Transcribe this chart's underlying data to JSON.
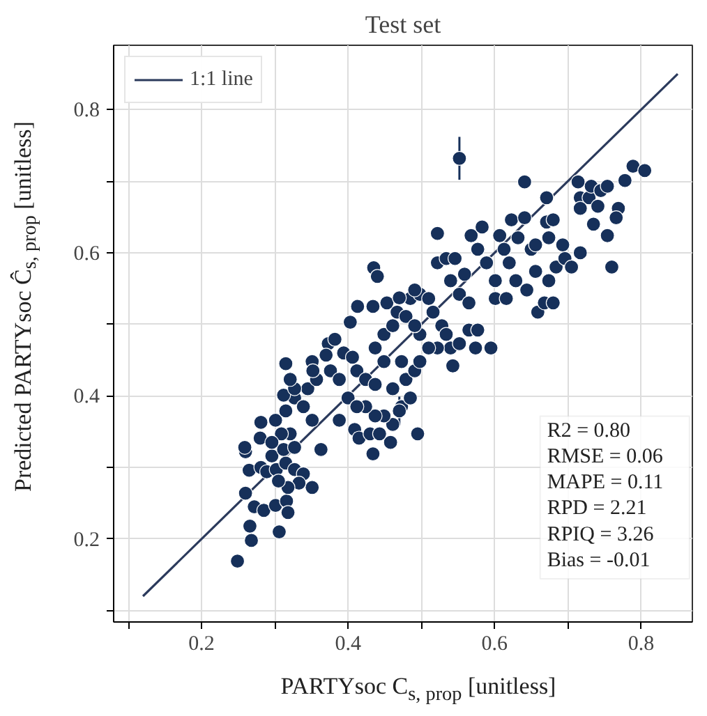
{
  "chart_data": {
    "type": "scatter",
    "title": "Test set",
    "xlabel": "PARTYsoc C$_{s, prop}$ [unitless]",
    "ylabel": "Predicted PARTYsoc Ĉ$_{s, prop}$ [unitless]",
    "xlim": [
      0.08,
      0.87
    ],
    "ylim": [
      0.084,
      0.89
    ],
    "xticks": [
      {
        "value": 0.1,
        "label": null
      },
      0.2,
      {
        "value": 0.3,
        "label": null
      },
      0.4,
      {
        "value": 0.5,
        "label": null
      },
      0.6,
      {
        "value": 0.7,
        "label": null
      },
      0.8
    ],
    "yticks": [
      {
        "value": 0.1,
        "label": null
      },
      0.2,
      {
        "value": 0.3,
        "label": null
      },
      0.4,
      {
        "value": 0.5,
        "label": null
      },
      0.6,
      {
        "value": 0.7,
        "label": null
      },
      0.8
    ],
    "grid": true,
    "legend": "top left",
    "annotations": [
      "R2 = 0.80",
      "RMSE = 0.06",
      "MAPE = 0.11",
      "RPD = 2.21",
      "RPIQ = 3.26",
      "Bias = -0.01"
    ],
    "series": [
      {
        "name": "1:1 line",
        "type": "line",
        "color": "#2b3a5c",
        "x": [
          0.12,
          0.85
        ],
        "values": [
          0.12,
          0.85
        ]
      },
      {
        "color": "#16305a",
        "marker": "circle",
        "x": [
          0.249,
          0.268,
          0.266,
          0.306,
          0.26,
          0.272,
          0.285,
          0.301,
          0.316,
          0.318,
          0.265,
          0.281,
          0.26,
          0.259,
          0.28,
          0.281,
          0.301,
          0.289,
          0.302,
          0.315,
          0.327,
          0.339,
          0.351,
          0.333,
          0.318,
          0.305,
          0.296,
          0.312,
          0.327,
          0.321,
          0.309,
          0.296,
          0.315,
          0.327,
          0.312,
          0.339,
          0.351,
          0.363,
          0.345,
          0.357,
          0.315,
          0.327,
          0.376,
          0.388,
          0.373,
          0.382,
          0.37,
          0.394,
          0.406,
          0.412,
          0.424,
          0.437,
          0.4,
          0.388,
          0.409,
          0.415,
          0.43,
          0.443,
          0.434,
          0.458,
          0.461,
          0.449,
          0.473,
          0.485,
          0.495,
          0.437,
          0.424,
          0.412,
          0.461,
          0.479,
          0.491,
          0.498,
          0.473,
          0.449,
          0.437,
          0.449,
          0.461,
          0.467,
          0.479,
          0.485,
          0.498,
          0.51,
          0.516,
          0.528,
          0.534,
          0.54,
          0.543,
          0.552,
          0.565,
          0.577,
          0.595,
          0.574,
          0.522,
          0.51,
          0.498,
          0.491,
          0.403,
          0.413,
          0.434,
          0.435,
          0.44,
          0.453,
          0.47,
          0.491,
          0.522,
          0.534,
          0.546,
          0.522,
          0.54,
          0.552,
          0.565,
          0.559,
          0.568,
          0.583,
          0.577,
          0.589,
          0.607,
          0.601,
          0.601,
          0.616,
          0.623,
          0.641,
          0.641,
          0.671,
          0.632,
          0.65,
          0.656,
          0.644,
          0.659,
          0.668,
          0.68,
          0.674,
          0.684,
          0.674,
          0.671,
          0.68,
          0.696,
          0.705,
          0.717,
          0.693,
          0.656,
          0.629,
          0.62,
          0.613,
          0.714,
          0.717,
          0.729,
          0.732,
          0.745,
          0.754,
          0.741,
          0.769,
          0.766,
          0.735,
          0.754,
          0.76,
          0.778,
          0.789,
          0.805,
          0.717,
          0.351,
          0.321,
          0.552,
          0.47,
          0.352
        ],
        "values": [
          0.169,
          0.198,
          0.218,
          0.21,
          0.264,
          0.245,
          0.24,
          0.247,
          0.253,
          0.237,
          0.296,
          0.3,
          0.322,
          0.328,
          0.341,
          0.363,
          0.366,
          0.294,
          0.297,
          0.306,
          0.297,
          0.291,
          0.272,
          0.278,
          0.272,
          0.281,
          0.316,
          0.325,
          0.328,
          0.347,
          0.347,
          0.335,
          0.379,
          0.397,
          0.401,
          0.385,
          0.366,
          0.325,
          0.41,
          0.423,
          0.445,
          0.41,
          0.435,
          0.423,
          0.473,
          0.479,
          0.457,
          0.46,
          0.454,
          0.435,
          0.423,
          0.416,
          0.397,
          0.366,
          0.353,
          0.341,
          0.347,
          0.347,
          0.319,
          0.335,
          0.36,
          0.372,
          0.385,
          0.397,
          0.347,
          0.372,
          0.385,
          0.385,
          0.41,
          0.423,
          0.435,
          0.448,
          0.448,
          0.448,
          0.467,
          0.486,
          0.498,
          0.517,
          0.511,
          0.536,
          0.542,
          0.536,
          0.517,
          0.498,
          0.486,
          0.467,
          0.442,
          0.473,
          0.492,
          0.492,
          0.467,
          0.467,
          0.467,
          0.467,
          0.486,
          0.498,
          0.503,
          0.525,
          0.525,
          0.579,
          0.567,
          0.53,
          0.537,
          0.548,
          0.586,
          0.592,
          0.592,
          0.627,
          0.561,
          0.542,
          0.53,
          0.57,
          0.624,
          0.636,
          0.605,
          0.586,
          0.624,
          0.561,
          0.536,
          0.536,
          0.646,
          0.649,
          0.699,
          0.677,
          0.621,
          0.605,
          0.574,
          0.548,
          0.517,
          0.53,
          0.53,
          0.561,
          0.58,
          0.621,
          0.643,
          0.646,
          0.592,
          0.58,
          0.6,
          0.611,
          0.611,
          0.561,
          0.586,
          0.605,
          0.699,
          0.677,
          0.677,
          0.693,
          0.687,
          0.693,
          0.665,
          0.662,
          0.649,
          0.64,
          0.624,
          0.58,
          0.701,
          0.721,
          0.715,
          0.662,
          0.448,
          0.423,
          0.732,
          0.379,
          0.435
        ],
        "errors": [
          null,
          null,
          null,
          null,
          null,
          null,
          null,
          null,
          null,
          null,
          null,
          null,
          null,
          null,
          null,
          null,
          null,
          null,
          null,
          null,
          null,
          null,
          null,
          null,
          null,
          null,
          null,
          null,
          null,
          null,
          null,
          null,
          null,
          null,
          null,
          null,
          null,
          null,
          null,
          null,
          null,
          null,
          null,
          null,
          null,
          null,
          null,
          null,
          null,
          null,
          null,
          null,
          null,
          null,
          null,
          null,
          null,
          null,
          null,
          null,
          null,
          null,
          null,
          null,
          null,
          null,
          null,
          null,
          null,
          null,
          null,
          null,
          null,
          null,
          null,
          null,
          null,
          null,
          null,
          null,
          null,
          null,
          null,
          null,
          null,
          null,
          null,
          null,
          null,
          null,
          null,
          null,
          null,
          null,
          null,
          null,
          null,
          null,
          null,
          null,
          null,
          null,
          null,
          null,
          null,
          null,
          null,
          null,
          null,
          null,
          null,
          null,
          null,
          null,
          null,
          null,
          null,
          null,
          null,
          null,
          null,
          null,
          null,
          null,
          null,
          null,
          null,
          null,
          null,
          null,
          null,
          null,
          null,
          null,
          null,
          null,
          null,
          null,
          null,
          null,
          null,
          null,
          null,
          null,
          null,
          null,
          null,
          null,
          null,
          null,
          null,
          null,
          null,
          null,
          null,
          null,
          null,
          null,
          null,
          null,
          null,
          null,
          0.03,
          0.02,
          0.02
        ]
      }
    ]
  }
}
